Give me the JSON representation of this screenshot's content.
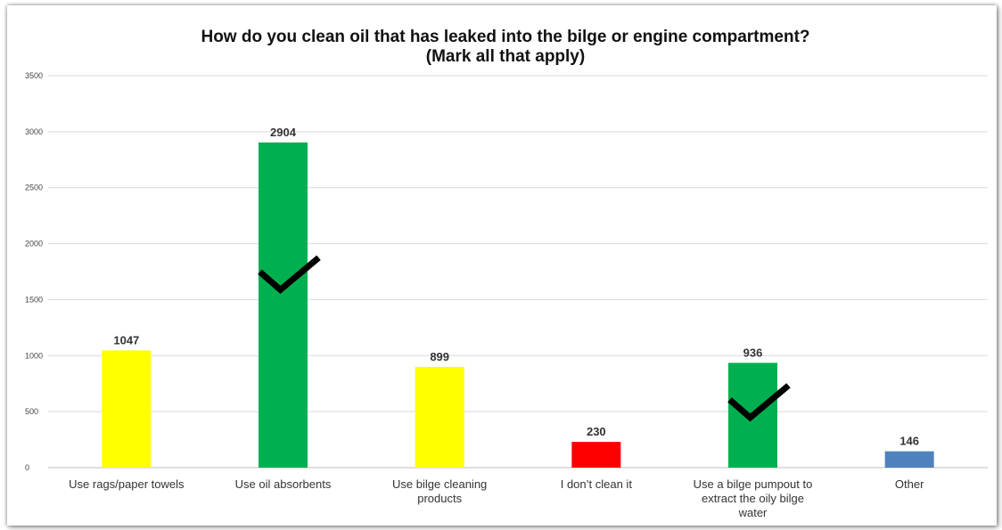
{
  "chart_data": {
    "type": "bar",
    "title": "How do you clean oil that has leaked into the bilge or engine compartment?",
    "subtitle": "(Mark all that apply)",
    "categories": [
      [
        "Use rags/paper towels"
      ],
      [
        "Use oil absorbents"
      ],
      [
        "Use bilge cleaning",
        "products"
      ],
      [
        "I don’t clean it"
      ],
      [
        "Use a bilge pumpout to",
        "extract the oily bilge",
        "water"
      ],
      [
        "Other"
      ]
    ],
    "values": [
      1047,
      2904,
      899,
      230,
      936,
      146
    ],
    "value_labels": [
      "1047",
      "2904",
      "899",
      "230",
      "936",
      "146"
    ],
    "bar_colors": [
      "#FFFF00",
      "#00B050",
      "#FFFF00",
      "#FF0000",
      "#00B050",
      "#4F81BD"
    ],
    "checkmarks_on": [
      1,
      4
    ],
    "checkmark_icon": "checkmark-icon",
    "ylim": [
      0,
      3500
    ],
    "yticks": [
      "0",
      "500",
      "1000",
      "1500",
      "2000",
      "2500",
      "3000",
      "3500"
    ],
    "grid": true,
    "legend": "none"
  }
}
